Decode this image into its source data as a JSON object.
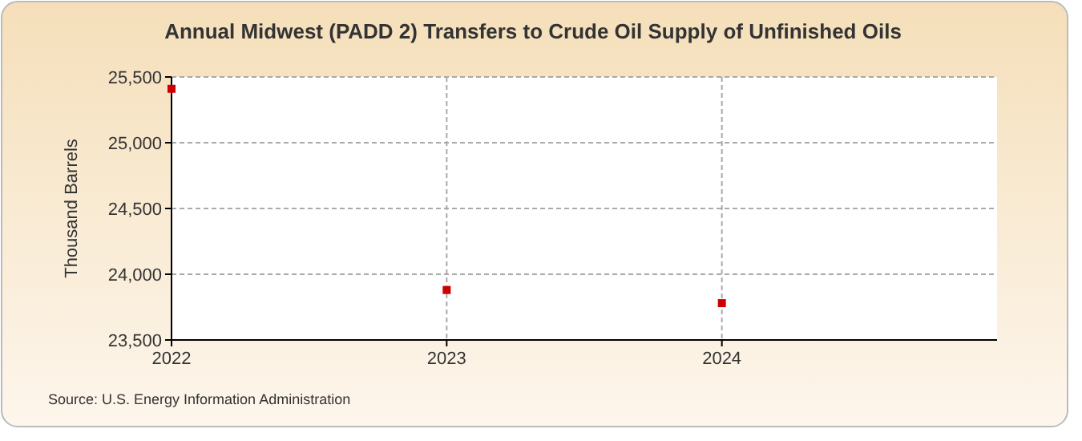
{
  "chart_data": {
    "type": "scatter",
    "title": "Annual Midwest (PADD 2) Transfers to Crude Oil Supply of Unfinished Oils",
    "ylabel": "Thousand Barrels",
    "x": [
      2022,
      2023,
      2024
    ],
    "series": [
      {
        "color": "#cc0000",
        "values": [
          25410,
          23880,
          23780
        ]
      }
    ],
    "xlim": [
      2022,
      2025
    ],
    "xticks": [
      2022,
      2023,
      2024
    ],
    "ylim": [
      23500,
      25500
    ],
    "yticks": [
      {
        "value": 23500,
        "label": "23,500"
      },
      {
        "value": 24000,
        "label": "24,000"
      },
      {
        "value": 24500,
        "label": "24,500"
      },
      {
        "value": 25000,
        "label": "25,000"
      },
      {
        "value": 25500,
        "label": "25,500"
      }
    ],
    "grid": true,
    "marker": "square",
    "annotations": [
      "Source: U.S. Energy Information Administration"
    ]
  }
}
